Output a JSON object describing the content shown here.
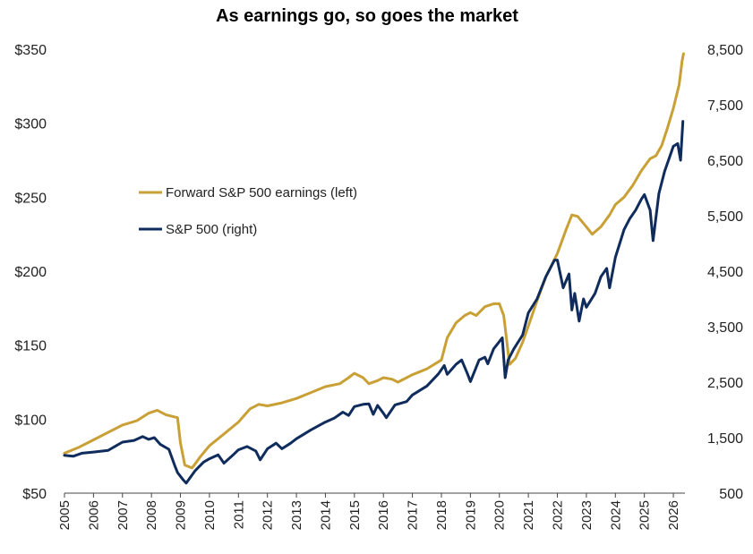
{
  "chart_data": {
    "type": "line",
    "title": "As earnings go, so goes the market",
    "x_tick_labels": [
      "2005",
      "2006",
      "2007",
      "2008",
      "2009",
      "2010",
      "2011",
      "2012",
      "2013",
      "2014",
      "2015",
      "2016",
      "2017",
      "2018",
      "2019",
      "2020",
      "2021",
      "2022",
      "2023",
      "2024",
      "2025",
      "2026"
    ],
    "y_left": {
      "ylim": [
        50,
        350
      ],
      "ticks": [
        50,
        100,
        150,
        200,
        250,
        300,
        350
      ],
      "tick_labels": [
        "$50",
        "$100",
        "$150",
        "$200",
        "$250",
        "$300",
        "$350"
      ]
    },
    "y_right": {
      "ylim": [
        500,
        8500
      ],
      "ticks": [
        500,
        1500,
        2500,
        3500,
        4500,
        5500,
        6500,
        7500,
        8500
      ],
      "tick_labels": [
        "500",
        "1,500",
        "2,500",
        "3,500",
        "4,500",
        "5,500",
        "6,500",
        "7,500",
        "8,500"
      ]
    },
    "legend_placement": "left-center",
    "grid": false,
    "series": [
      {
        "name": "Forward S&P 500 earnings (left)",
        "axis": "left",
        "color": "#C9A035",
        "points": [
          [
            2005.0,
            77
          ],
          [
            2005.5,
            81
          ],
          [
            2006.0,
            86
          ],
          [
            2006.5,
            91
          ],
          [
            2007.0,
            96
          ],
          [
            2007.5,
            99
          ],
          [
            2007.9,
            104
          ],
          [
            2008.2,
            106
          ],
          [
            2008.5,
            103
          ],
          [
            2008.9,
            101
          ],
          [
            2009.0,
            84
          ],
          [
            2009.15,
            69
          ],
          [
            2009.4,
            67
          ],
          [
            2009.7,
            75
          ],
          [
            2010.0,
            82
          ],
          [
            2010.5,
            90
          ],
          [
            2011.0,
            98
          ],
          [
            2011.4,
            107
          ],
          [
            2011.7,
            110
          ],
          [
            2012.0,
            109
          ],
          [
            2012.5,
            111
          ],
          [
            2013.0,
            114
          ],
          [
            2013.5,
            118
          ],
          [
            2014.0,
            122
          ],
          [
            2014.5,
            124
          ],
          [
            2014.8,
            128
          ],
          [
            2015.0,
            131
          ],
          [
            2015.3,
            128
          ],
          [
            2015.5,
            124
          ],
          [
            2015.8,
            126
          ],
          [
            2016.0,
            128
          ],
          [
            2016.3,
            127
          ],
          [
            2016.5,
            125
          ],
          [
            2016.8,
            128
          ],
          [
            2017.0,
            130
          ],
          [
            2017.5,
            134
          ],
          [
            2018.0,
            140
          ],
          [
            2018.2,
            155
          ],
          [
            2018.5,
            165
          ],
          [
            2018.8,
            170
          ],
          [
            2019.0,
            172
          ],
          [
            2019.2,
            170
          ],
          [
            2019.5,
            176
          ],
          [
            2019.8,
            178
          ],
          [
            2020.0,
            178
          ],
          [
            2020.15,
            170
          ],
          [
            2020.35,
            137
          ],
          [
            2020.55,
            141
          ],
          [
            2020.8,
            152
          ],
          [
            2021.0,
            163
          ],
          [
            2021.3,
            180
          ],
          [
            2021.6,
            196
          ],
          [
            2022.0,
            212
          ],
          [
            2022.3,
            228
          ],
          [
            2022.5,
            238
          ],
          [
            2022.7,
            237
          ],
          [
            2023.0,
            230
          ],
          [
            2023.2,
            225
          ],
          [
            2023.5,
            230
          ],
          [
            2023.8,
            238
          ],
          [
            2024.0,
            245
          ],
          [
            2024.3,
            250
          ],
          [
            2024.6,
            258
          ],
          [
            2024.9,
            268
          ],
          [
            2025.2,
            276
          ],
          [
            2025.4,
            278
          ],
          [
            2025.6,
            285
          ],
          [
            2025.8,
            297
          ],
          [
            2026.0,
            310
          ],
          [
            2026.2,
            326
          ],
          [
            2026.3,
            342
          ],
          [
            2026.35,
            347
          ]
        ]
      },
      {
        "name": "S&P 500 (right)",
        "axis": "right",
        "color": "#0F2C5C",
        "points": [
          [
            2005.0,
            1180
          ],
          [
            2005.3,
            1165
          ],
          [
            2005.6,
            1220
          ],
          [
            2006.0,
            1240
          ],
          [
            2006.5,
            1270
          ],
          [
            2007.0,
            1420
          ],
          [
            2007.4,
            1450
          ],
          [
            2007.7,
            1520
          ],
          [
            2007.9,
            1470
          ],
          [
            2008.1,
            1500
          ],
          [
            2008.3,
            1380
          ],
          [
            2008.6,
            1290
          ],
          [
            2008.8,
            1000
          ],
          [
            2008.9,
            870
          ],
          [
            2009.1,
            735
          ],
          [
            2009.2,
            680
          ],
          [
            2009.5,
            900
          ],
          [
            2009.8,
            1060
          ],
          [
            2010.0,
            1120
          ],
          [
            2010.3,
            1190
          ],
          [
            2010.5,
            1040
          ],
          [
            2010.8,
            1180
          ],
          [
            2011.0,
            1280
          ],
          [
            2011.3,
            1340
          ],
          [
            2011.6,
            1260
          ],
          [
            2011.75,
            1100
          ],
          [
            2012.0,
            1300
          ],
          [
            2012.3,
            1400
          ],
          [
            2012.5,
            1300
          ],
          [
            2012.8,
            1400
          ],
          [
            2013.0,
            1480
          ],
          [
            2013.5,
            1640
          ],
          [
            2014.0,
            1780
          ],
          [
            2014.3,
            1850
          ],
          [
            2014.6,
            1960
          ],
          [
            2014.8,
            1900
          ],
          [
            2015.0,
            2060
          ],
          [
            2015.3,
            2100
          ],
          [
            2015.5,
            2110
          ],
          [
            2015.65,
            1920
          ],
          [
            2015.8,
            2080
          ],
          [
            2016.0,
            1940
          ],
          [
            2016.1,
            1860
          ],
          [
            2016.4,
            2090
          ],
          [
            2016.8,
            2150
          ],
          [
            2017.0,
            2270
          ],
          [
            2017.5,
            2430
          ],
          [
            2017.9,
            2650
          ],
          [
            2018.1,
            2800
          ],
          [
            2018.2,
            2640
          ],
          [
            2018.5,
            2820
          ],
          [
            2018.7,
            2900
          ],
          [
            2018.9,
            2650
          ],
          [
            2019.0,
            2510
          ],
          [
            2019.3,
            2900
          ],
          [
            2019.5,
            2950
          ],
          [
            2019.6,
            2830
          ],
          [
            2019.8,
            3100
          ],
          [
            2020.0,
            3230
          ],
          [
            2020.1,
            3300
          ],
          [
            2020.2,
            2580
          ],
          [
            2020.3,
            2900
          ],
          [
            2020.5,
            3100
          ],
          [
            2020.8,
            3350
          ],
          [
            2021.0,
            3750
          ],
          [
            2021.3,
            4000
          ],
          [
            2021.6,
            4400
          ],
          [
            2021.9,
            4700
          ],
          [
            2022.0,
            4700
          ],
          [
            2022.2,
            4200
          ],
          [
            2022.4,
            4450
          ],
          [
            2022.5,
            3800
          ],
          [
            2022.6,
            4100
          ],
          [
            2022.75,
            3600
          ],
          [
            2022.9,
            4000
          ],
          [
            2023.0,
            3850
          ],
          [
            2023.3,
            4100
          ],
          [
            2023.5,
            4400
          ],
          [
            2023.7,
            4550
          ],
          [
            2023.8,
            4200
          ],
          [
            2024.0,
            4750
          ],
          [
            2024.3,
            5250
          ],
          [
            2024.5,
            5450
          ],
          [
            2024.7,
            5600
          ],
          [
            2024.9,
            5800
          ],
          [
            2025.0,
            5880
          ],
          [
            2025.2,
            5600
          ],
          [
            2025.3,
            5050
          ],
          [
            2025.5,
            5900
          ],
          [
            2025.7,
            6300
          ],
          [
            2025.9,
            6600
          ],
          [
            2026.0,
            6750
          ],
          [
            2026.15,
            6800
          ],
          [
            2026.25,
            6500
          ],
          [
            2026.33,
            7200
          ]
        ]
      }
    ]
  }
}
